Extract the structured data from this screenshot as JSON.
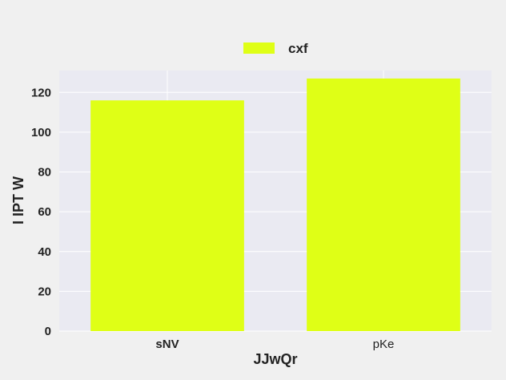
{
  "chart_data": {
    "type": "bar",
    "title": "",
    "categories": [
      "sNV",
      "pKe"
    ],
    "series": [
      {
        "name": "cxf",
        "values": [
          116,
          127
        ],
        "color": "#dfff16"
      }
    ],
    "xlabel": "JJwQr",
    "ylabel": "I IPT W",
    "ylim": [
      0,
      131
    ],
    "yticks": [
      0,
      20,
      40,
      60,
      80,
      100,
      120
    ],
    "grid": true,
    "legend_position": "top-center",
    "plot_background": "#eaeaf2",
    "figure_background": "#f0f0f0"
  }
}
